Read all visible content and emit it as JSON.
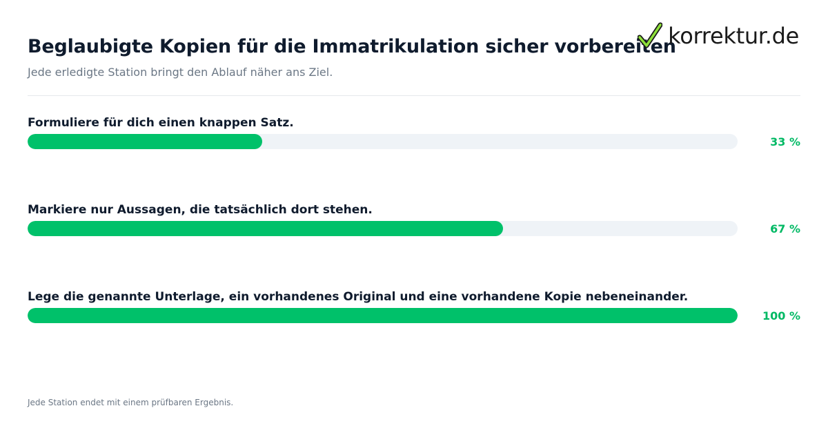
{
  "header": {
    "title": "Beglaubigte Kopien für die Immatrikulation sicher vorbereiten",
    "subtitle": "Jede erledigte Station bringt den Ablauf näher ans Ziel."
  },
  "brand": {
    "name": "korrektur.de",
    "logo_icon": "checkmark-icon",
    "accent_color": "#00c16a"
  },
  "steps": [
    {
      "label": "Formuliere für dich einen knappen Satz.",
      "progress_percent": 33,
      "percent_label": "33 %"
    },
    {
      "label": "Markiere nur Aussagen, die tatsächlich dort stehen.",
      "progress_percent": 67,
      "percent_label": "67 %"
    },
    {
      "label": "Lege die genannte Unterlage, ein vorhandenes Original und eine vorhandene Kopie nebeneinander.",
      "progress_percent": 100,
      "percent_label": "100 %"
    }
  ],
  "footer": {
    "note": "Jede Station endet mit einem prüfbaren Ergebnis."
  }
}
